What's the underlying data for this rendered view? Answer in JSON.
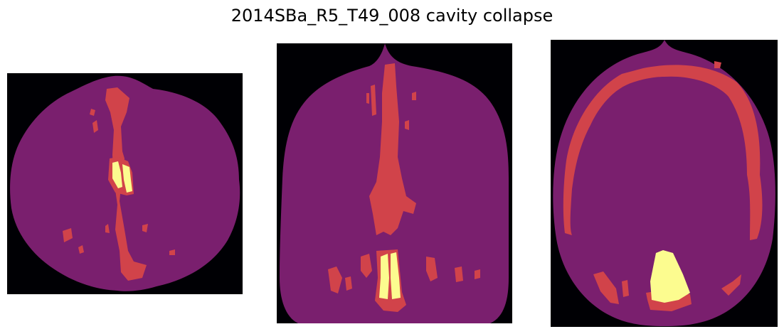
{
  "figure": {
    "title": "2014SBa_R5_T49_008 cavity collapse"
  },
  "colors": {
    "background": "#000004",
    "tissue": "#7a1f6e",
    "cavity": "#d1434a",
    "collapse": "#fcfc8f"
  }
}
